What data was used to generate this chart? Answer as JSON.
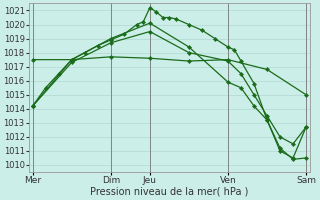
{
  "background_color": "#cceee8",
  "grid_color": "#b0d8d0",
  "line_color": "#1a6b1a",
  "marker_color": "#1a6b1a",
  "xlabel": "Pression niveau de la mer( hPa )",
  "ylim": [
    1009.5,
    1021.5
  ],
  "yticks": [
    1010,
    1011,
    1012,
    1013,
    1014,
    1015,
    1016,
    1017,
    1018,
    1019,
    1020,
    1021
  ],
  "xtick_labels": [
    "Mer",
    "Dim",
    "Jeu",
    "Ven",
    "Sam"
  ],
  "xtick_positions": [
    0,
    6,
    9,
    15,
    21
  ],
  "day_lines_x": [
    0,
    6,
    9,
    15,
    21
  ],
  "xlim": [
    -0.3,
    21.3
  ],
  "series": [
    {
      "x": [
        0,
        1,
        2,
        3,
        4,
        5,
        6,
        7,
        8,
        8.5,
        9,
        9.5,
        10,
        10.5,
        11,
        12,
        13,
        14,
        15,
        15.5,
        16,
        17,
        18,
        19,
        20,
        21
      ],
      "y": [
        1014.2,
        1015.5,
        1016.5,
        1017.5,
        1018.0,
        1018.5,
        1018.9,
        1019.3,
        1020.0,
        1020.2,
        1021.2,
        1020.9,
        1020.5,
        1020.5,
        1020.4,
        1020.0,
        1019.6,
        1019.0,
        1018.4,
        1018.2,
        1017.4,
        1015.8,
        1013.2,
        1011.0,
        1010.5,
        1012.7
      ]
    },
    {
      "x": [
        0,
        3,
        6,
        9,
        12,
        15,
        18,
        21
      ],
      "y": [
        1017.5,
        1017.5,
        1017.7,
        1017.6,
        1017.4,
        1017.5,
        1016.8,
        1015.0
      ]
    },
    {
      "x": [
        0,
        3,
        6,
        9,
        12,
        15,
        16,
        17,
        18,
        19,
        20,
        21
      ],
      "y": [
        1014.2,
        1017.5,
        1019.0,
        1020.1,
        1018.4,
        1015.9,
        1015.5,
        1014.2,
        1013.2,
        1011.2,
        1010.4,
        1010.5
      ]
    },
    {
      "x": [
        0,
        3,
        6,
        9,
        12,
        15,
        16,
        17,
        18,
        19,
        20,
        21
      ],
      "y": [
        1014.2,
        1017.3,
        1018.7,
        1019.5,
        1018.0,
        1017.4,
        1016.5,
        1015.0,
        1013.5,
        1012.0,
        1011.5,
        1012.7
      ]
    }
  ]
}
